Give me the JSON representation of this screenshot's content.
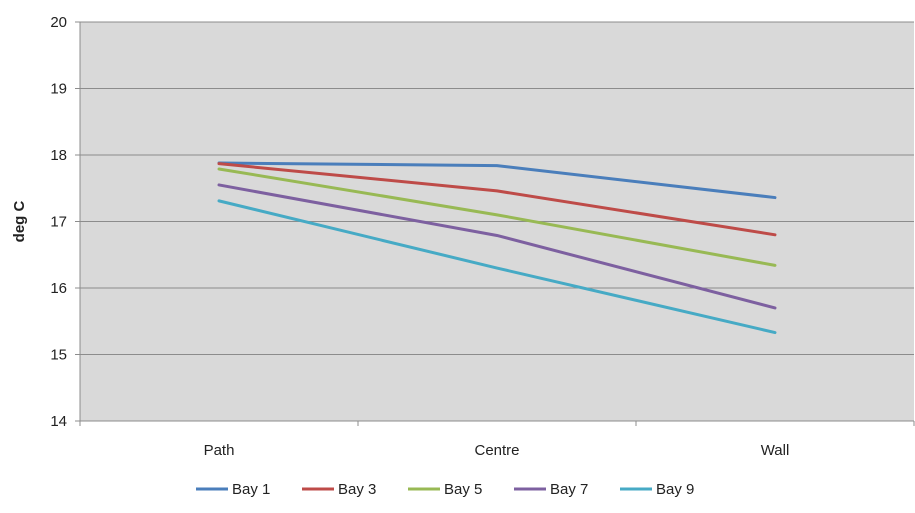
{
  "chart_data": {
    "type": "line",
    "title": "",
    "xlabel": "",
    "ylabel": "deg C",
    "categories": [
      "Path",
      "Centre",
      "Wall"
    ],
    "ylim": [
      14,
      20
    ],
    "yticks": [
      14,
      15,
      16,
      17,
      18,
      19,
      20
    ],
    "grid": true,
    "legend_position": "bottom",
    "plot_background": "#d9d9d9",
    "series": [
      {
        "name": "Bay 1",
        "color": "#4a7ebb",
        "values": [
          17.88,
          17.84,
          17.36
        ]
      },
      {
        "name": "Bay 3",
        "color": "#be4b48",
        "values": [
          17.87,
          17.46,
          16.8
        ]
      },
      {
        "name": "Bay 5",
        "color": "#98b954",
        "values": [
          17.79,
          17.1,
          16.34
        ]
      },
      {
        "name": "Bay 7",
        "color": "#7d60a0",
        "values": [
          17.55,
          16.79,
          15.7
        ]
      },
      {
        "name": "Bay 9",
        "color": "#46aac5",
        "values": [
          17.31,
          16.3,
          15.33
        ]
      }
    ]
  }
}
